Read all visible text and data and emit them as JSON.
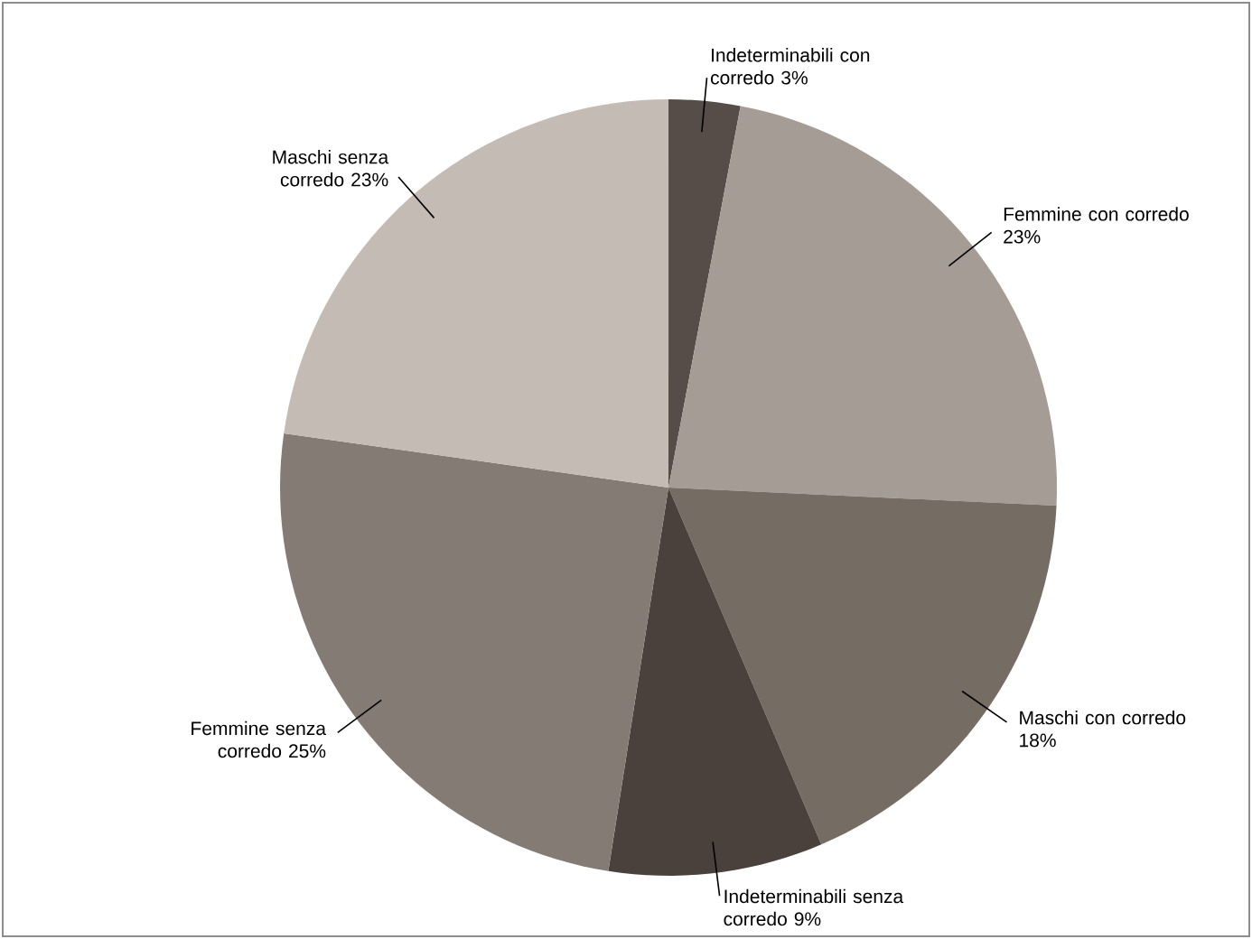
{
  "chart_data": {
    "type": "pie",
    "categories": [
      "Indeterminabili con corredo",
      "Femmine con corredo",
      "Maschi con corredo",
      "Indeterminabili senza corredo",
      "Femmine senza corredo",
      "Maschi senza corredo"
    ],
    "values": [
      3,
      23,
      18,
      9,
      25,
      23
    ],
    "value_labels": [
      "3%",
      "23%",
      "18%",
      "9%",
      "25%",
      "23%"
    ],
    "colors": [
      "#574d48",
      "#a59c95",
      "#756c64",
      "#4a413c",
      "#847b75",
      "#c4bbb5"
    ]
  }
}
